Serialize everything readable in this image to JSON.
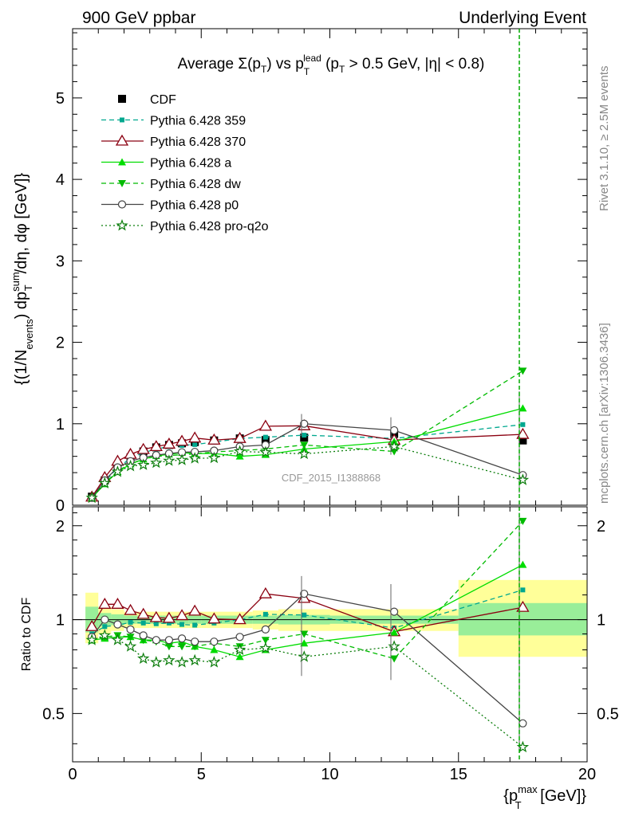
{
  "header": {
    "left": "900 GeV ppbar",
    "right": "Underlying Event"
  },
  "side_text": {
    "rivet": "Rivet 3.1.10, ≥ 2.5M events",
    "mcplots": "mcplots.cern.ch [arXiv:1306.3436]"
  },
  "watermark": "CDF_2015_I1388868",
  "chart_data": [
    {
      "type": "scatter",
      "title": "Average Σ(pT) vs pT lead (pT > 0.5 GeV, |η| < 0.8)",
      "title_parts": {
        "average": "Average ",
        "sigma": "Σ(p",
        "T1": "T",
        "vs": ") vs p",
        "lead": "lead",
        "T2": "T",
        "cuts": " (p",
        "T3": "T",
        "rest": " > 0.5 GeV, |η| < 0.8)"
      },
      "ylabel": "{(1/Nevents) dpTsum/dη, dφ [GeV]}",
      "ylabel_parts": {
        "a": "{(1/N",
        "sub_events": "events",
        "b": ") dp",
        "sup_sum": "sum",
        "sub_T": "T",
        "c": "/dη, dφ [GeV]}"
      },
      "xlim": [
        0,
        20
      ],
      "ylim": [
        0,
        5.85
      ],
      "yticks": [
        "0",
        "1",
        "2",
        "3",
        "4",
        "5"
      ],
      "legend_placement": "top-left",
      "x": [
        0.75,
        1.25,
        1.75,
        2.25,
        2.75,
        3.25,
        3.75,
        4.25,
        4.75,
        5.5,
        6.5,
        7.5,
        9.0,
        12.5,
        17.5
      ],
      "series": [
        {
          "name": "CDF",
          "color": "#000000",
          "marker": "square",
          "line": "none",
          "values": [
            0.105,
            0.305,
            0.48,
            0.585,
            0.66,
            0.71,
            0.74,
            0.76,
            0.775,
            0.795,
            0.82,
            0.8,
            0.83,
            0.875,
            0.795
          ]
        },
        {
          "name": "Pythia 6.428 359",
          "color": "#00a88f",
          "marker": "square-small",
          "line": "dashed",
          "values": [
            0.095,
            0.29,
            0.46,
            0.575,
            0.645,
            0.69,
            0.72,
            0.735,
            0.745,
            0.775,
            0.82,
            0.835,
            0.86,
            0.82,
            0.99
          ]
        },
        {
          "name": "Pythia 6.428 370",
          "color": "#8b0010",
          "marker": "triangle-open",
          "line": "solid",
          "values": [
            0.1,
            0.34,
            0.54,
            0.625,
            0.685,
            0.72,
            0.75,
            0.785,
            0.825,
            0.8,
            0.82,
            0.97,
            0.975,
            0.8,
            0.87
          ]
        },
        {
          "name": "Pythia 6.428 a",
          "color": "#00dd00",
          "marker": "triangle",
          "line": "solid",
          "values": [
            0.09,
            0.26,
            0.41,
            0.505,
            0.565,
            0.605,
            0.625,
            0.645,
            0.635,
            0.635,
            0.6,
            0.62,
            0.69,
            0.78,
            1.19
          ]
        },
        {
          "name": "Pythia 6.428 dw",
          "color": "#00bb00",
          "marker": "triangle-down",
          "line": "dashed",
          "values": [
            0.09,
            0.27,
            0.42,
            0.51,
            0.565,
            0.6,
            0.61,
            0.62,
            0.63,
            0.655,
            0.67,
            0.69,
            0.74,
            0.66,
            1.65
          ]
        },
        {
          "name": "Pythia 6.428 p0",
          "color": "#444444",
          "marker": "circle-open",
          "line": "solid",
          "values": [
            0.09,
            0.305,
            0.465,
            0.54,
            0.585,
            0.615,
            0.635,
            0.65,
            0.655,
            0.67,
            0.72,
            0.74,
            1.0,
            0.92,
            0.37
          ]
        },
        {
          "name": "Pythia 6.428 pro-q2o",
          "color": "#0b7d0b",
          "marker": "star",
          "line": "dotted",
          "values": [
            0.09,
            0.27,
            0.41,
            0.48,
            0.495,
            0.52,
            0.545,
            0.555,
            0.575,
            0.58,
            0.66,
            0.65,
            0.63,
            0.72,
            0.31
          ]
        }
      ]
    },
    {
      "type": "scatter",
      "title": "",
      "ylabel": "Ratio to CDF",
      "xlabel": "{pTmax [GeV]}",
      "xlabel_parts": {
        "a": "{p",
        "sup": "max",
        "sub": "T",
        "b": " [GeV]}"
      },
      "xlim": [
        0,
        20
      ],
      "ylim": [
        0.35,
        2.3
      ],
      "yticks": [
        "0.5",
        "1",
        "2"
      ],
      "xticks": [
        "0",
        "5",
        "10",
        "15",
        "20"
      ],
      "x": [
        0.75,
        1.25,
        1.75,
        2.25,
        2.75,
        3.25,
        3.75,
        4.25,
        4.75,
        5.5,
        6.5,
        7.5,
        9.0,
        12.5,
        17.5
      ],
      "bands": {
        "stat": [
          [
            0.5,
            1.0,
            0.91,
            1.1
          ],
          [
            1.0,
            1.5,
            0.95,
            1.05
          ],
          [
            1.5,
            2.0,
            0.96,
            1.04
          ],
          [
            2.0,
            2.5,
            0.97,
            1.03
          ],
          [
            2.5,
            3.0,
            0.97,
            1.03
          ],
          [
            3.0,
            3.5,
            0.97,
            1.03
          ],
          [
            3.5,
            4.0,
            0.97,
            1.03
          ],
          [
            4.0,
            4.5,
            0.97,
            1.03
          ],
          [
            4.5,
            5.0,
            0.97,
            1.03
          ],
          [
            5.0,
            6.0,
            0.97,
            1.03
          ],
          [
            6.0,
            7.0,
            0.97,
            1.03
          ],
          [
            7.0,
            8.0,
            0.97,
            1.03
          ],
          [
            8.0,
            10.0,
            0.965,
            1.035
          ],
          [
            10.0,
            15.0,
            0.97,
            1.03
          ],
          [
            15.0,
            20.0,
            0.89,
            1.13
          ]
        ],
        "total": [
          [
            0.5,
            1.0,
            0.84,
            1.22
          ],
          [
            1.0,
            1.5,
            0.9,
            1.1
          ],
          [
            1.5,
            2.0,
            0.92,
            1.08
          ],
          [
            2.0,
            2.5,
            0.94,
            1.06
          ],
          [
            2.5,
            3.0,
            0.94,
            1.06
          ],
          [
            3.0,
            3.5,
            0.94,
            1.06
          ],
          [
            3.5,
            4.0,
            0.94,
            1.06
          ],
          [
            4.0,
            4.5,
            0.94,
            1.06
          ],
          [
            4.5,
            5.0,
            0.94,
            1.06
          ],
          [
            5.0,
            6.0,
            0.94,
            1.06
          ],
          [
            6.0,
            7.0,
            0.94,
            1.06
          ],
          [
            7.0,
            8.0,
            0.93,
            1.07
          ],
          [
            8.0,
            10.0,
            0.92,
            1.08
          ],
          [
            10.0,
            15.0,
            0.92,
            1.08
          ],
          [
            15.0,
            20.0,
            0.76,
            1.34
          ]
        ]
      },
      "series": [
        {
          "name": "Pythia 6.428 359",
          "values": [
            0.9,
            0.95,
            0.96,
            0.98,
            0.975,
            0.97,
            0.975,
            0.965,
            0.96,
            0.975,
            1.0,
            1.04,
            1.035,
            0.94,
            1.245
          ]
        },
        {
          "name": "Pythia 6.428 370",
          "values": [
            0.95,
            1.12,
            1.12,
            1.07,
            1.04,
            1.015,
            1.01,
            1.03,
            1.065,
            1.005,
            1.0,
            1.21,
            1.17,
            0.915,
            1.095
          ]
        },
        {
          "name": "Pythia 6.428 a",
          "values": [
            0.86,
            0.87,
            0.88,
            0.88,
            0.86,
            0.86,
            0.84,
            0.85,
            0.82,
            0.8,
            0.76,
            0.8,
            0.84,
            0.91,
            1.5
          ]
        },
        {
          "name": "Pythia 6.428 dw",
          "values": [
            0.86,
            0.88,
            0.89,
            0.88,
            0.86,
            0.85,
            0.82,
            0.82,
            0.82,
            0.84,
            0.82,
            0.86,
            0.9,
            0.75,
            2.07
          ]
        },
        {
          "name": "Pythia 6.428 p0",
          "values": [
            0.88,
            1.0,
            0.965,
            0.93,
            0.89,
            0.86,
            0.86,
            0.87,
            0.85,
            0.85,
            0.88,
            0.93,
            1.21,
            1.06,
            0.465
          ]
        },
        {
          "name": "Pythia 6.428 pro-q2o",
          "values": [
            0.86,
            0.89,
            0.86,
            0.82,
            0.75,
            0.73,
            0.74,
            0.73,
            0.74,
            0.73,
            0.8,
            0.81,
            0.76,
            0.82,
            0.39
          ]
        }
      ]
    }
  ]
}
